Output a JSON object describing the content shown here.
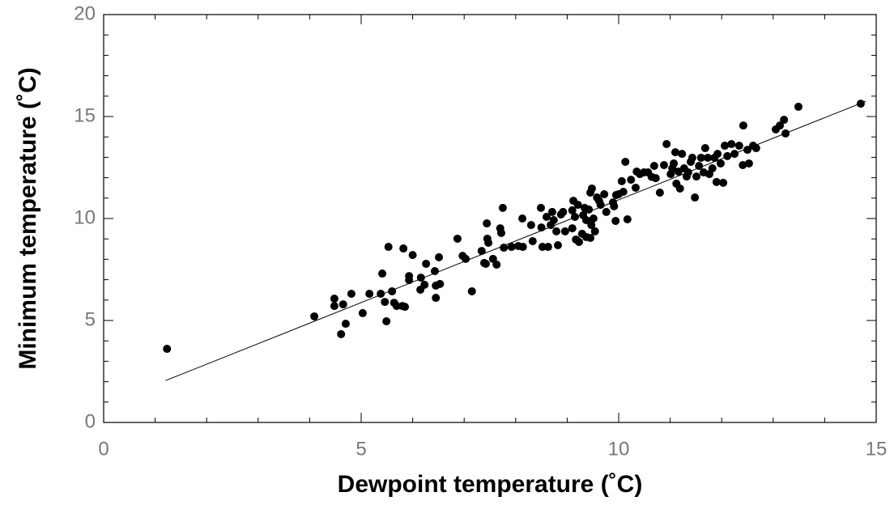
{
  "chart_data": {
    "type": "scatter",
    "x_label": "Dewpoint temperature (˚C)",
    "y_label": "Minimum temperature (˚C)",
    "xlim": [
      0,
      15
    ],
    "ylim": [
      0,
      20
    ],
    "xticks": [
      0,
      5,
      10,
      15
    ],
    "yticks": [
      0,
      5,
      10,
      15,
      20
    ],
    "series": [
      {
        "color": "#000000",
        "x": [
          1.23,
          4.09,
          4.48,
          4.48,
          4.81,
          4.65,
          4.7,
          4.61,
          5.03,
          5.16,
          5.41,
          5.38,
          5.53,
          5.46,
          5.49,
          5.6,
          5.64,
          5.69,
          5.8,
          5.85,
          5.82,
          6.0,
          5.93,
          5.93,
          6.16,
          6.15,
          6.23,
          6.26,
          6.43,
          6.45,
          6.51,
          6.53,
          6.45,
          6.87,
          6.97,
          7.03,
          7.15,
          7.34,
          7.39,
          7.42,
          7.44,
          7.45,
          7.47,
          7.56,
          7.63,
          7.7,
          7.72,
          7.75,
          7.77,
          7.92,
          8.05,
          8.13,
          8.14,
          8.3,
          8.33,
          8.49,
          8.5,
          8.52,
          8.6,
          8.63,
          8.68,
          8.71,
          8.74,
          8.79,
          8.82,
          8.88,
          8.92,
          8.96,
          9.1,
          9.1,
          9.12,
          9.15,
          9.17,
          9.21,
          9.23,
          9.29,
          9.31,
          9.34,
          9.37,
          9.37,
          9.42,
          9.45,
          9.47,
          9.45,
          9.48,
          9.51,
          9.54,
          9.58,
          9.62,
          9.65,
          9.72,
          9.76,
          9.89,
          9.91,
          9.94,
          9.95,
          10.0,
          10.06,
          10.09,
          10.13,
          10.17,
          10.24,
          10.33,
          10.35,
          10.41,
          10.49,
          10.57,
          10.64,
          10.69,
          10.72,
          10.8,
          10.88,
          10.93,
          11.01,
          11.04,
          11.07,
          11.1,
          11.12,
          11.16,
          11.19,
          11.23,
          11.27,
          11.32,
          11.35,
          11.4,
          11.43,
          11.48,
          11.51,
          11.56,
          11.6,
          11.65,
          11.68,
          11.73,
          11.76,
          11.82,
          11.86,
          11.9,
          11.92,
          11.98,
          12.03,
          12.06,
          12.11,
          12.19,
          12.25,
          12.34,
          12.42,
          12.41,
          12.5,
          12.53,
          12.61,
          12.67,
          13.05,
          13.13,
          13.21,
          13.24,
          13.49,
          14.7
        ],
        "values": [
          3.61,
          5.2,
          6.07,
          5.71,
          6.31,
          5.79,
          4.84,
          4.33,
          5.36,
          6.31,
          7.3,
          6.31,
          8.61,
          5.91,
          4.96,
          6.43,
          5.87,
          5.71,
          5.71,
          5.67,
          8.53,
          8.21,
          6.98,
          7.18,
          7.1,
          6.51,
          6.75,
          7.78,
          7.42,
          6.11,
          8.1,
          6.79,
          6.71,
          9.01,
          8.17,
          8.02,
          6.43,
          8.41,
          7.82,
          7.78,
          9.76,
          9.01,
          8.81,
          8.02,
          7.74,
          9.52,
          9.29,
          10.52,
          8.57,
          8.61,
          8.65,
          10.0,
          8.61,
          9.68,
          8.89,
          10.52,
          9.56,
          8.61,
          10.08,
          8.61,
          9.68,
          10.32,
          9.92,
          9.37,
          8.69,
          10.2,
          10.32,
          9.37,
          9.52,
          10.4,
          10.87,
          10.08,
          8.97,
          10.67,
          8.85,
          9.25,
          10.16,
          10.52,
          9.09,
          9.92,
          10.44,
          9.05,
          9.68,
          11.27,
          11.47,
          10.0,
          9.37,
          11.03,
          10.87,
          10.67,
          11.19,
          10.32,
          10.79,
          10.6,
          9.88,
          11.15,
          11.19,
          11.83,
          11.31,
          12.78,
          9.96,
          11.9,
          11.51,
          12.3,
          12.18,
          12.26,
          12.26,
          12.04,
          12.58,
          11.98,
          11.27,
          12.62,
          13.65,
          12.18,
          12.46,
          12.7,
          13.25,
          11.71,
          12.3,
          11.47,
          13.17,
          12.46,
          12.06,
          12.26,
          12.78,
          12.98,
          11.03,
          12.06,
          12.58,
          12.98,
          12.26,
          13.45,
          12.98,
          12.18,
          12.46,
          12.98,
          11.79,
          13.17,
          12.7,
          11.75,
          13.57,
          13.06,
          13.65,
          13.17,
          13.57,
          14.56,
          12.62,
          13.37,
          12.7,
          13.57,
          13.45,
          14.37,
          14.56,
          14.84,
          14.17,
          15.48,
          15.63
        ]
      }
    ],
    "fit_line": {
      "color": "#000000",
      "x": [
        1.2,
        14.8
      ],
      "values": [
        2.05,
        15.75
      ]
    }
  }
}
